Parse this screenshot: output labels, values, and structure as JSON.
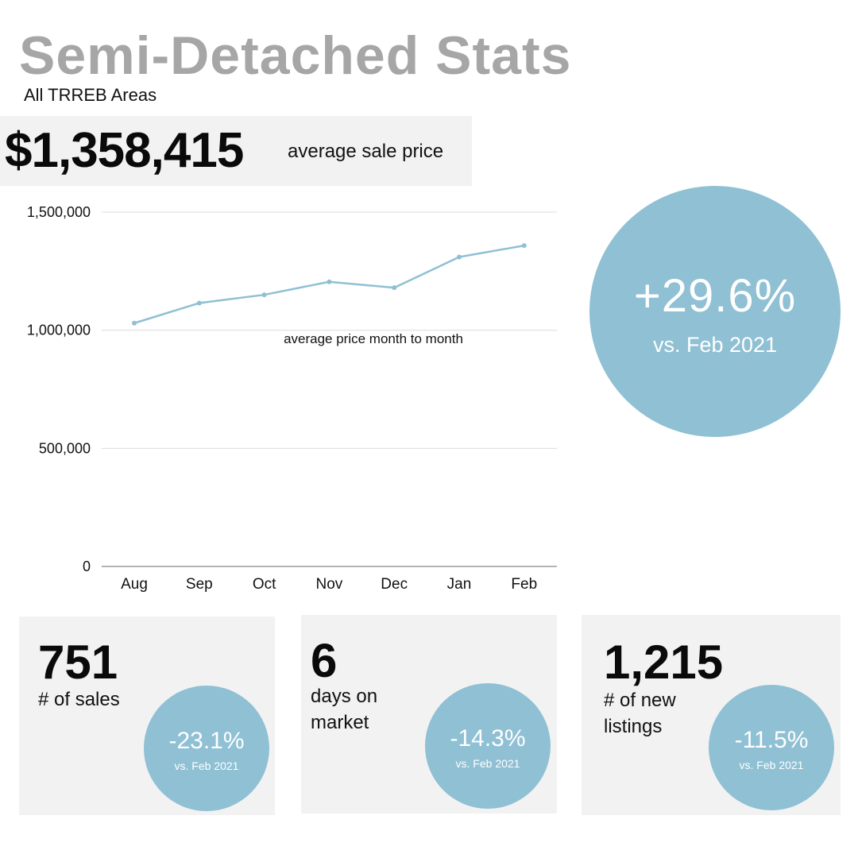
{
  "header": {
    "title": "Semi-Detached Stats",
    "subtitle": "All TRREB Areas"
  },
  "price": {
    "value": "$1,358,415",
    "label": "average sale price"
  },
  "colors": {
    "accent": "#8fc0d4",
    "title_gray": "#a6a6a6",
    "card_bg": "#f2f2f2",
    "line": "#8fc0d4"
  },
  "chart_data": {
    "type": "line",
    "categories": [
      "Aug",
      "Sep",
      "Oct",
      "Nov",
      "Dec",
      "Jan",
      "Feb"
    ],
    "series": [
      {
        "values": [
          1030000,
          1115000,
          1150000,
          1205000,
          1180000,
          1310000,
          1358415
        ]
      }
    ],
    "annotation": "average price month to month",
    "yticks": [
      "0",
      "500,000",
      "1,000,000",
      "1,500,000"
    ],
    "ytick_values": [
      0,
      500000,
      1000000,
      1500000
    ],
    "ylim": [
      0,
      1500000
    ],
    "grid": true,
    "title": "",
    "xlabel": "",
    "ylabel": ""
  },
  "change": {
    "pct": "+29.6%",
    "vs": "vs. Feb 2021"
  },
  "cards": [
    {
      "value": "751",
      "label": "# of sales",
      "pct": "-23.1%",
      "vs": "vs. Feb 2021"
    },
    {
      "value": "6",
      "label": "days on market",
      "pct": "-14.3%",
      "vs": "vs. Feb 2021"
    },
    {
      "value": "1,215",
      "label": "# of new listings",
      "pct": "-11.5%",
      "vs": "vs. Feb 2021"
    }
  ]
}
